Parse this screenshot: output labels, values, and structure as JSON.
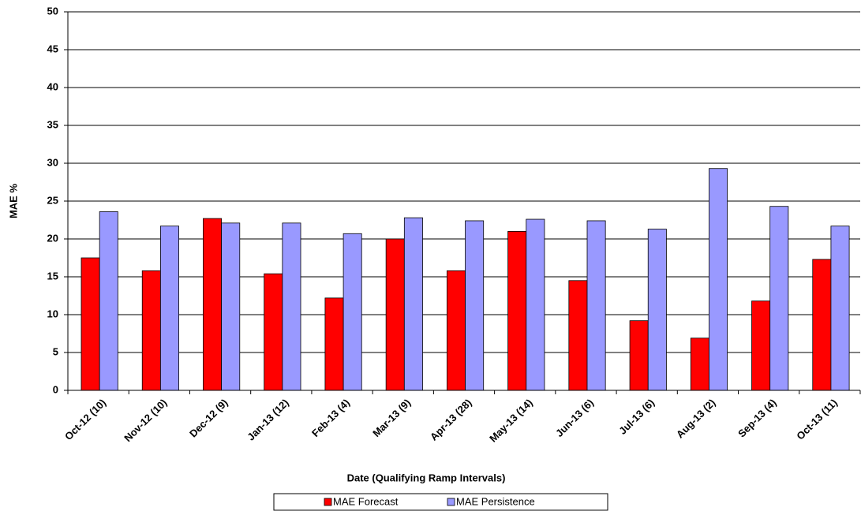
{
  "chart_data": {
    "type": "bar",
    "x_label": "Date (Qualifying Ramp Intervals)",
    "y_label": "MAE %",
    "categories": [
      "Oct-12 (10)",
      "Nov-12 (10)",
      "Dec-12 (9)",
      "Jan-13 (12)",
      "Feb-13 (4)",
      "Mar-13 (9)",
      "Apr-13 (28)",
      "May-13 (14)",
      "Jun-13 (6)",
      "Jul-13 (6)",
      "Aug-13 (2)",
      "Sep-13 (4)",
      "Oct-13 (11)"
    ],
    "series": [
      {
        "name": "MAE Forecast",
        "color": "#ff0000",
        "values": [
          17.5,
          15.8,
          22.7,
          15.4,
          12.2,
          20.0,
          15.8,
          21.0,
          14.5,
          9.2,
          6.9,
          11.8,
          17.3
        ]
      },
      {
        "name": "MAE Persistence",
        "color": "#9999ff",
        "values": [
          23.6,
          21.7,
          22.1,
          22.1,
          20.7,
          22.8,
          22.4,
          22.6,
          22.4,
          21.3,
          29.3,
          24.3,
          21.7
        ]
      }
    ],
    "ylim": [
      0,
      50
    ],
    "yticks": [
      0,
      5,
      10,
      15,
      20,
      25,
      30,
      35,
      40,
      45,
      50
    ],
    "grid": true
  }
}
